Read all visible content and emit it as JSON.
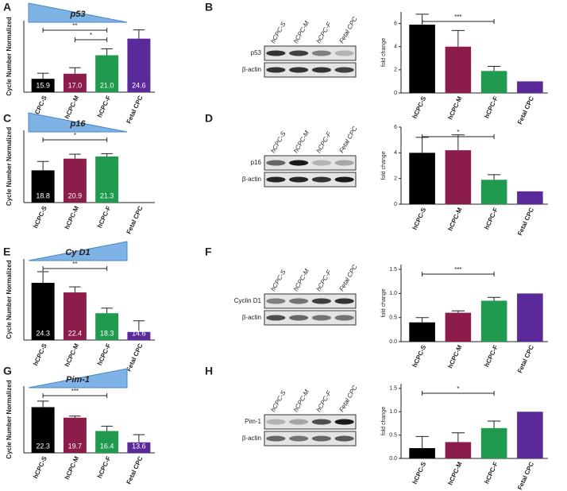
{
  "panel_letters": [
    "A",
    "B",
    "C",
    "D",
    "E",
    "F",
    "G",
    "H"
  ],
  "chart_data": [
    {
      "type": "bar",
      "title": "p53",
      "ylabel": "Cycle Number Normalized",
      "categories": [
        "hCPC-S",
        "hCPC-M",
        "hCPC-F",
        "Fetal CPC"
      ],
      "values": [
        15.9,
        17.0,
        21.0,
        24.6
      ],
      "value_labels": [
        "15.9",
        "17.0",
        "21.0",
        "24.6"
      ],
      "errors": [
        1.2,
        1.3,
        1.4,
        1.9
      ],
      "colors": [
        "#000000",
        "#8c1d4b",
        "#1f9a4e",
        "#5a2a9a"
      ],
      "ylim": [
        13,
        28.5
      ],
      "triangle": "decreasing",
      "annotations": [
        {
          "text": "**",
          "from": "hCPC-S",
          "to": "hCPC-F"
        },
        {
          "text": "*",
          "from": "hCPC-M",
          "to": "hCPC-F"
        }
      ]
    },
    {
      "type": "bar",
      "ylabel": "fold change",
      "categories": [
        "hCPC-S",
        "hCPC-M",
        "hCPC-F",
        "Fetal CPC"
      ],
      "values": [
        5.9,
        4.0,
        1.9,
        1.0
      ],
      "errors": [
        0.9,
        1.4,
        0.4,
        null
      ],
      "colors": [
        "#000000",
        "#8c1d4b",
        "#1f9a4e",
        "#5a2a9a"
      ],
      "ylim": [
        0,
        7
      ],
      "yticks": [
        0,
        2,
        4,
        6
      ],
      "annotations": [
        {
          "text": "***",
          "from": "hCPC-S",
          "to": "hCPC-F"
        }
      ]
    },
    {
      "type": "bar",
      "title": "p16",
      "ylabel": "Cycle Number Normalized",
      "categories": [
        "hCPC-S",
        "hCPC-M",
        "hCPC-F",
        "Fetal CPC"
      ],
      "values": [
        18.8,
        20.9,
        21.3,
        null
      ],
      "value_labels": [
        "18.8",
        "20.9",
        "21.3",
        null
      ],
      "errors": [
        1.6,
        0.8,
        0.5,
        null
      ],
      "colors": [
        "#000000",
        "#8c1d4b",
        "#1f9a4e",
        "#5a2a9a"
      ],
      "ylim": [
        13,
        26
      ],
      "triangle": "decreasing",
      "annotations": [
        {
          "text": "*",
          "from": "hCPC-S",
          "to": "hCPC-F"
        }
      ]
    },
    {
      "type": "bar",
      "ylabel": "fold change",
      "categories": [
        "hCPC-S",
        "hCPC-M",
        "hCPC-F",
        "Fetal CPC"
      ],
      "values": [
        4.0,
        4.2,
        1.9,
        1.0
      ],
      "errors": [
        1.2,
        1.2,
        0.4,
        null
      ],
      "colors": [
        "#000000",
        "#8c1d4b",
        "#1f9a4e",
        "#5a2a9a"
      ],
      "ylim": [
        0,
        6
      ],
      "yticks": [
        0,
        2,
        4,
        6
      ],
      "annotations": [
        {
          "text": "*",
          "from": "hCPC-S",
          "to": "hCPC-F"
        }
      ]
    },
    {
      "type": "bar",
      "title": "Cy D1",
      "ylabel": "Cycle Number Normalized",
      "categories": [
        "hCPC-S",
        "hCPC-M",
        "hCPC-F",
        "Fetal CPC"
      ],
      "values": [
        24.3,
        22.4,
        18.3,
        14.6
      ],
      "value_labels": [
        "24.3",
        "22.4",
        "18.3",
        "14.6"
      ],
      "errors": [
        2.2,
        1.1,
        1.0,
        2.2
      ],
      "colors": [
        "#000000",
        "#8c1d4b",
        "#1f9a4e",
        "#5a2a9a"
      ],
      "ylim": [
        13,
        29
      ],
      "triangle": "increasing",
      "annotations": [
        {
          "text": "**",
          "from": "hCPC-S",
          "to": "hCPC-F"
        }
      ]
    },
    {
      "type": "bar",
      "ylabel": "fold change",
      "categories": [
        "hCPC-S",
        "hCPC-M",
        "hCPC-F",
        "Fetal CPC"
      ],
      "values": [
        0.4,
        0.6,
        0.85,
        1.0
      ],
      "errors": [
        0.1,
        0.04,
        0.07,
        null
      ],
      "colors": [
        "#000000",
        "#8c1d4b",
        "#1f9a4e",
        "#5a2a9a"
      ],
      "ylim": [
        0,
        1.6
      ],
      "yticks": [
        {
          "value": 0,
          "label": "0.0"
        },
        0.5,
        {
          "value": 1,
          "label": "1.0"
        },
        1.5
      ],
      "annotations": [
        {
          "text": "***",
          "from": "hCPC-S",
          "to": "hCPC-F"
        }
      ]
    },
    {
      "type": "bar",
      "title": "Pim-1",
      "ylabel": "Cycle Number Normalized",
      "categories": [
        "hCPC-S",
        "hCPC-M",
        "hCPC-F",
        "Fetal CPC"
      ],
      "values": [
        22.3,
        19.7,
        16.4,
        13.6
      ],
      "value_labels": [
        "22.3",
        "19.7",
        "16.4",
        "13.6"
      ],
      "errors": [
        1.5,
        0.4,
        1.2,
        1.9
      ],
      "colors": [
        "#000000",
        "#8c1d4b",
        "#1f9a4e",
        "#5a2a9a"
      ],
      "ylim": [
        11,
        27.5
      ],
      "triangle": "increasing",
      "annotations": [
        {
          "text": "***",
          "from": "hCPC-S",
          "to": "hCPC-F"
        }
      ]
    },
    {
      "type": "bar",
      "ylabel": "fold change",
      "categories": [
        "hCPC-S",
        "hCPC-M",
        "hCPC-F",
        "Fetal CPC"
      ],
      "values": [
        0.22,
        0.35,
        0.65,
        1.0
      ],
      "errors": [
        0.25,
        0.2,
        0.15,
        null
      ],
      "colors": [
        "#000000",
        "#8c1d4b",
        "#1f9a4e",
        "#5a2a9a"
      ],
      "ylim": [
        0,
        1.6
      ],
      "yticks": [
        {
          "value": 0,
          "label": "0.0"
        },
        0.5,
        {
          "value": 1,
          "label": "1.0"
        },
        1.5
      ],
      "annotations": [
        {
          "text": "*",
          "from": "hCPC-S",
          "to": "hCPC-F"
        }
      ]
    }
  ],
  "blots": [
    {
      "lanes": [
        "hCPC-S",
        "hCPC-M",
        "hCPC-F",
        "Fetal CPC"
      ],
      "rows": [
        "p53",
        "β-actin"
      ]
    },
    {
      "lanes": [
        "hCPC-S",
        "hCPC-M",
        "hCPC-F",
        "Fetal CPC"
      ],
      "rows": [
        "p16",
        "β-actin"
      ]
    },
    {
      "lanes": [
        "hCPC-S",
        "hCPC-M",
        "hCPC-F",
        "Fetal CPC"
      ],
      "rows": [
        "Cyclin D1",
        "β-actin"
      ]
    },
    {
      "lanes": [
        "hCPC-S",
        "hCPC-M",
        "hCPC-F",
        "Fetal CPC"
      ],
      "rows": [
        "Pim-1",
        "β-actin"
      ]
    }
  ]
}
